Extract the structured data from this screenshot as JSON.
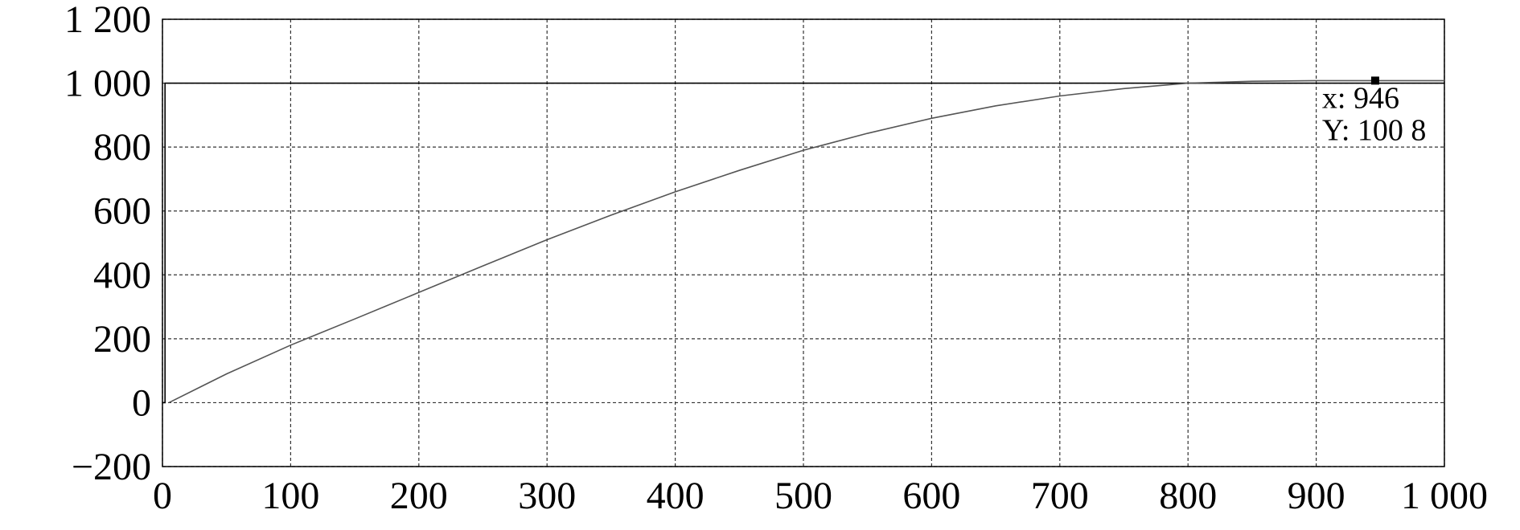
{
  "chart_data": {
    "type": "line",
    "xlim": [
      0,
      1000
    ],
    "ylim": [
      -200,
      1200
    ],
    "xticks": [
      0,
      100,
      200,
      300,
      400,
      500,
      600,
      700,
      800,
      900,
      {
        "value": 1000,
        "label": "1 000"
      }
    ],
    "yticks": [
      {
        "value": -200,
        "label": "−200"
      },
      0,
      200,
      400,
      600,
      800,
      {
        "value": 1000,
        "label": "1 000"
      },
      {
        "value": 1200,
        "label": "1 200"
      }
    ],
    "grid": true,
    "series": [
      {
        "color": "#000000",
        "x": [
          0,
          2,
          2,
          1000
        ],
        "values": [
          0,
          0,
          1000,
          1000
        ]
      },
      {
        "color": "#555555",
        "x": [
          5,
          50,
          100,
          150,
          200,
          250,
          300,
          350,
          400,
          450,
          500,
          550,
          600,
          650,
          700,
          750,
          800,
          850,
          900,
          950,
          1000
        ],
        "values": [
          0,
          90,
          180,
          262,
          345,
          428,
          510,
          587,
          660,
          727,
          790,
          843,
          890,
          929,
          960,
          983,
          1000,
          1006,
          1008,
          1008,
          1008
        ]
      }
    ],
    "datatip": {
      "x": 946,
      "y": 1008,
      "labels": [
        "x: 946",
        "Y: 100 8"
      ]
    }
  }
}
